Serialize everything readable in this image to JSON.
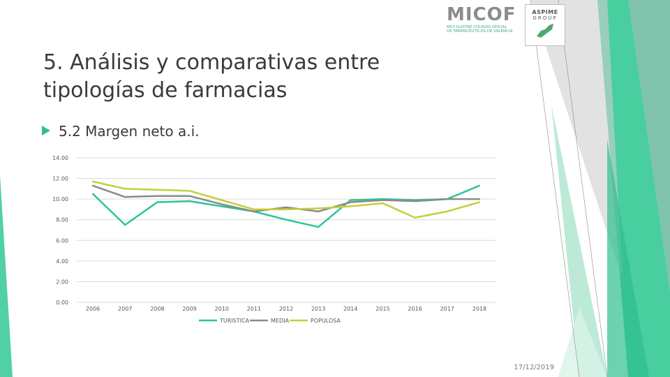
{
  "slide": {
    "title": "5. Análisis y comparativas entre tipologías de farmacias",
    "bullet": "5.2 Margen neto a.i.",
    "date": "17/12/2019"
  },
  "logos": {
    "micof": "MICOF",
    "micof_line1": "MUY ILUSTRE COLEGIO OFICIAL",
    "micof_line2": "DE FARMACÉUTICOS DE VALENCIA",
    "aspime_1": "ASPIME",
    "aspime_2": "GROUP"
  },
  "colors": {
    "accent": "#2fbf8f",
    "turistica": "#2dc39a",
    "media": "#8a8a8a",
    "populosa": "#c4cf3c"
  },
  "chart_data": {
    "type": "line",
    "categories": [
      "2006",
      "2007",
      "2008",
      "2009",
      "2010",
      "2011",
      "2012",
      "2013",
      "2014",
      "2015",
      "2016",
      "2017",
      "2018"
    ],
    "series": [
      {
        "name": "TURISTICA",
        "values": [
          10.5,
          7.5,
          9.7,
          9.8,
          9.3,
          8.8,
          8.0,
          7.3,
          9.9,
          10.0,
          9.9,
          10.0,
          11.3
        ]
      },
      {
        "name": "MEDIA",
        "values": [
          11.3,
          10.2,
          10.3,
          10.3,
          9.5,
          8.8,
          9.2,
          8.8,
          9.7,
          9.9,
          9.8,
          10.0,
          10.0
        ]
      },
      {
        "name": "POPULOSA",
        "values": [
          11.7,
          11.0,
          10.9,
          10.8,
          9.9,
          9.0,
          9.0,
          9.1,
          9.3,
          9.6,
          8.2,
          8.8,
          9.7
        ]
      }
    ],
    "yticks": [
      "14.00",
      "12.00",
      "10.00",
      "8.00",
      "6.00",
      "4.00",
      "2.00",
      "0.00"
    ],
    "ylim": [
      0,
      14
    ],
    "grid": true,
    "legend": "bottom"
  }
}
